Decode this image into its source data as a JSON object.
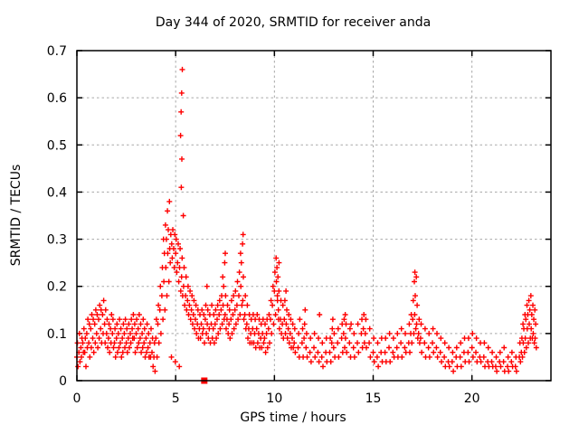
{
  "colors": {
    "marker": "#ff0000",
    "grid": "#a8a8a8",
    "axis": "#000000",
    "background": "#ffffff"
  },
  "chart_data": {
    "type": "scatter",
    "title": "Day 344 of 2020, SRMTID for receiver anda",
    "xlabel": "GPS time / hours",
    "ylabel": "SRMTID / TECUs",
    "xlim": [
      0,
      24
    ],
    "ylim": [
      0,
      0.7
    ],
    "grid": {
      "on": true,
      "style": "dashed"
    },
    "legend": "none",
    "xticks": {
      "values": [
        0,
        5,
        10,
        15,
        20
      ],
      "labels": [
        "0",
        "5",
        "10",
        "15",
        "20"
      ]
    },
    "yticks": {
      "values": [
        0,
        0.1,
        0.2,
        0.3,
        0.4,
        0.5,
        0.6,
        0.7
      ],
      "labels": [
        "0",
        "0.1",
        "0.2",
        "0.3",
        "0.4",
        "0.5",
        "0.6",
        "0.7"
      ]
    },
    "series": [
      {
        "name": "srmtid-points",
        "marker": "plus",
        "color": "#ff0000",
        "samples_format": "[hour, value, value, ...]",
        "samples": [
          [
            0.0,
            0.05,
            0.08,
            0.03
          ],
          [
            0.1,
            0.06,
            0.1,
            0.04
          ],
          [
            0.2,
            0.07,
            0.05,
            0.09
          ],
          [
            0.3,
            0.08,
            0.06,
            0.11
          ],
          [
            0.4,
            0.06,
            0.09,
            0.03
          ],
          [
            0.5,
            0.1,
            0.07,
            0.13
          ],
          [
            0.6,
            0.08,
            0.12,
            0.05
          ],
          [
            0.7,
            0.11,
            0.07,
            0.14
          ],
          [
            0.8,
            0.09,
            0.13,
            0.06
          ],
          [
            0.9,
            0.12,
            0.08,
            0.15
          ],
          [
            1.0,
            0.1,
            0.14,
            0.07
          ],
          [
            1.1,
            0.13,
            0.09,
            0.16
          ],
          [
            1.2,
            0.11,
            0.15,
            0.08
          ],
          [
            1.3,
            0.14,
            0.1,
            0.17
          ],
          [
            1.4,
            0.12,
            0.08,
            0.15
          ],
          [
            1.5,
            0.1,
            0.13,
            0.07
          ],
          [
            1.6,
            0.09,
            0.12,
            0.06
          ],
          [
            1.7,
            0.11,
            0.08,
            0.14
          ],
          [
            1.8,
            0.1,
            0.13,
            0.07
          ],
          [
            1.9,
            0.08,
            0.11,
            0.05
          ],
          [
            2.0,
            0.09,
            0.12,
            0.06
          ],
          [
            2.1,
            0.1,
            0.07,
            0.13
          ],
          [
            2.2,
            0.08,
            0.11,
            0.05
          ],
          [
            2.3,
            0.09,
            0.06,
            0.12
          ],
          [
            2.4,
            0.1,
            0.07,
            0.13
          ],
          [
            2.5,
            0.08,
            0.11,
            0.06
          ],
          [
            2.6,
            0.09,
            0.12,
            0.07
          ],
          [
            2.7,
            0.1,
            0.08,
            0.13
          ],
          [
            2.8,
            0.11,
            0.09,
            0.14
          ],
          [
            2.9,
            0.09,
            0.12,
            0.06
          ],
          [
            3.0,
            0.1,
            0.13,
            0.07
          ],
          [
            3.1,
            0.11,
            0.08,
            0.14
          ],
          [
            3.2,
            0.09,
            0.12,
            0.06
          ],
          [
            3.3,
            0.1,
            0.07,
            0.13
          ],
          [
            3.4,
            0.08,
            0.11,
            0.05
          ],
          [
            3.5,
            0.09,
            0.06,
            0.12
          ],
          [
            3.6,
            0.07,
            0.1,
            0.05
          ],
          [
            3.7,
            0.08,
            0.05,
            0.11
          ],
          [
            3.8,
            0.06,
            0.09,
            0.03
          ],
          [
            3.9,
            0.05,
            0.08,
            0.02
          ],
          [
            4.0,
            0.09,
            0.13,
            0.05
          ],
          [
            4.1,
            0.12,
            0.16,
            0.08
          ],
          [
            4.2,
            0.15,
            0.2,
            0.1
          ],
          [
            4.3,
            0.18,
            0.24,
            0.13,
            0.3
          ],
          [
            4.4,
            0.21,
            0.27,
            0.15,
            0.33
          ],
          [
            4.5,
            0.24,
            0.3,
            0.18,
            0.36
          ],
          [
            4.6,
            0.27,
            0.32,
            0.21,
            0.38
          ],
          [
            4.7,
            0.28,
            0.25,
            0.31,
            0.05
          ],
          [
            4.8,
            0.29,
            0.26,
            0.32
          ],
          [
            4.9,
            0.28,
            0.24,
            0.31,
            0.04
          ],
          [
            5.0,
            0.27,
            0.3,
            0.23
          ],
          [
            5.1,
            0.25,
            0.29,
            0.21,
            0.03
          ],
          [
            5.2,
            0.24,
            0.28,
            0.19,
            0.41,
            0.47
          ],
          [
            5.25,
            0.52,
            0.57,
            0.61,
            0.66
          ],
          [
            5.3,
            0.22,
            0.26,
            0.18,
            0.35
          ],
          [
            5.4,
            0.2,
            0.24,
            0.16
          ],
          [
            5.5,
            0.18,
            0.22,
            0.15
          ],
          [
            5.6,
            0.17,
            0.2,
            0.14
          ],
          [
            5.7,
            0.16,
            0.19,
            0.13
          ],
          [
            5.8,
            0.15,
            0.18,
            0.12
          ],
          [
            5.9,
            0.14,
            0.17,
            0.11
          ],
          [
            6.0,
            0.13,
            0.16,
            0.1
          ],
          [
            6.1,
            0.12,
            0.15,
            0.09
          ],
          [
            6.2,
            0.11,
            0.14,
            0.09
          ],
          [
            6.3,
            0.12,
            0.15,
            0.1
          ],
          [
            6.4,
            0.11,
            0.14,
            0.08
          ],
          [
            6.5,
            0.13,
            0.16,
            0.1,
            0.2
          ],
          [
            6.6,
            0.12,
            0.15,
            0.09
          ],
          [
            6.7,
            0.11,
            0.14,
            0.08
          ],
          [
            6.8,
            0.12,
            0.16,
            0.09
          ],
          [
            6.9,
            0.11,
            0.14,
            0.08
          ],
          [
            7.0,
            0.12,
            0.15,
            0.09
          ],
          [
            7.1,
            0.13,
            0.16,
            0.1
          ],
          [
            7.2,
            0.14,
            0.17,
            0.11
          ],
          [
            7.3,
            0.15,
            0.18,
            0.12,
            0.22
          ],
          [
            7.4,
            0.16,
            0.2,
            0.13,
            0.25,
            0.27
          ],
          [
            7.5,
            0.14,
            0.18,
            0.11
          ],
          [
            7.6,
            0.13,
            0.16,
            0.1
          ],
          [
            7.7,
            0.12,
            0.15,
            0.09
          ],
          [
            7.8,
            0.13,
            0.17,
            0.1
          ],
          [
            7.9,
            0.14,
            0.18,
            0.11
          ],
          [
            8.0,
            0.15,
            0.19,
            0.12
          ],
          [
            8.1,
            0.16,
            0.21,
            0.13
          ],
          [
            8.2,
            0.18,
            0.23,
            0.14,
            0.27
          ],
          [
            8.3,
            0.2,
            0.25,
            0.16,
            0.29,
            0.31
          ],
          [
            8.4,
            0.17,
            0.22,
            0.13
          ],
          [
            8.5,
            0.14,
            0.18,
            0.11
          ],
          [
            8.6,
            0.12,
            0.16,
            0.09
          ],
          [
            8.7,
            0.11,
            0.14,
            0.08
          ],
          [
            8.8,
            0.1,
            0.13,
            0.08
          ],
          [
            8.9,
            0.11,
            0.14,
            0.08
          ],
          [
            9.0,
            0.1,
            0.13,
            0.07
          ],
          [
            9.1,
            0.11,
            0.14,
            0.08
          ],
          [
            9.2,
            0.1,
            0.13,
            0.07
          ],
          [
            9.3,
            0.09,
            0.12,
            0.07
          ],
          [
            9.4,
            0.1,
            0.13,
            0.08
          ],
          [
            9.5,
            0.09,
            0.12,
            0.06
          ],
          [
            9.6,
            0.1,
            0.13,
            0.07
          ],
          [
            9.7,
            0.11,
            0.14,
            0.08
          ],
          [
            9.8,
            0.13,
            0.17,
            0.1
          ],
          [
            9.9,
            0.16,
            0.2,
            0.12
          ],
          [
            10.0,
            0.19,
            0.23,
            0.14,
            0.26
          ],
          [
            10.1,
            0.21,
            0.24,
            0.17
          ],
          [
            10.15,
            0.18,
            0.22,
            0.13,
            0.25
          ],
          [
            10.2,
            0.15,
            0.19,
            0.11
          ],
          [
            10.3,
            0.13,
            0.17,
            0.1
          ],
          [
            10.4,
            0.12,
            0.16,
            0.09
          ],
          [
            10.5,
            0.13,
            0.17,
            0.1,
            0.19
          ],
          [
            10.6,
            0.12,
            0.15,
            0.09
          ],
          [
            10.7,
            0.11,
            0.14,
            0.08
          ],
          [
            10.8,
            0.1,
            0.13,
            0.07
          ],
          [
            10.9,
            0.09,
            0.12,
            0.07
          ],
          [
            11.0,
            0.08,
            0.11,
            0.06
          ],
          [
            11.2,
            0.07,
            0.1,
            0.05,
            0.13
          ],
          [
            11.4,
            0.08,
            0.11,
            0.05
          ],
          [
            11.5,
            0.09,
            0.12,
            0.15
          ],
          [
            11.6,
            0.07,
            0.1,
            0.05
          ],
          [
            11.8,
            0.06,
            0.09,
            0.04
          ],
          [
            12.0,
            0.07,
            0.1,
            0.05
          ],
          [
            12.2,
            0.06,
            0.09,
            0.04,
            0.14
          ],
          [
            12.4,
            0.05,
            0.08,
            0.03
          ],
          [
            12.6,
            0.06,
            0.09,
            0.04
          ],
          [
            12.8,
            0.06,
            0.09,
            0.04
          ],
          [
            12.9,
            0.08,
            0.11,
            0.13
          ],
          [
            13.0,
            0.07,
            0.1,
            0.05
          ],
          [
            13.2,
            0.08,
            0.11,
            0.05
          ],
          [
            13.4,
            0.09,
            0.12,
            0.06
          ],
          [
            13.5,
            0.1,
            0.13,
            0.07,
            0.14
          ],
          [
            13.6,
            0.09,
            0.12,
            0.06
          ],
          [
            13.8,
            0.08,
            0.11,
            0.05,
            0.12
          ],
          [
            14.0,
            0.07,
            0.1,
            0.05
          ],
          [
            14.2,
            0.08,
            0.12,
            0.06
          ],
          [
            14.4,
            0.1,
            0.13,
            0.07
          ],
          [
            14.5,
            0.11,
            0.14,
            0.08
          ],
          [
            14.6,
            0.1,
            0.13,
            0.07
          ],
          [
            14.8,
            0.08,
            0.11,
            0.05
          ],
          [
            15.0,
            0.06,
            0.09,
            0.04
          ],
          [
            15.2,
            0.05,
            0.08,
            0.03
          ],
          [
            15.4,
            0.06,
            0.09,
            0.04
          ],
          [
            15.6,
            0.06,
            0.09,
            0.04
          ],
          [
            15.8,
            0.07,
            0.1,
            0.04
          ],
          [
            16.0,
            0.06,
            0.09,
            0.05
          ],
          [
            16.2,
            0.07,
            0.1,
            0.05
          ],
          [
            16.4,
            0.08,
            0.11,
            0.05
          ],
          [
            16.6,
            0.07,
            0.1,
            0.06
          ],
          [
            16.8,
            0.08,
            0.12,
            0.06
          ],
          [
            16.9,
            0.1,
            0.14,
            0.08
          ],
          [
            17.0,
            0.13,
            0.17,
            0.1,
            0.21,
            0.23
          ],
          [
            17.1,
            0.14,
            0.18,
            0.11,
            0.22
          ],
          [
            17.2,
            0.12,
            0.16,
            0.09
          ],
          [
            17.3,
            0.1,
            0.13,
            0.08
          ],
          [
            17.4,
            0.09,
            0.12,
            0.06
          ],
          [
            17.6,
            0.08,
            0.11,
            0.05
          ],
          [
            17.8,
            0.07,
            0.1,
            0.05
          ],
          [
            18.0,
            0.08,
            0.11,
            0.06
          ],
          [
            18.2,
            0.07,
            0.1,
            0.05
          ],
          [
            18.4,
            0.06,
            0.09,
            0.04
          ],
          [
            18.6,
            0.05,
            0.08,
            0.03
          ],
          [
            18.8,
            0.04,
            0.07,
            0.03
          ],
          [
            19.0,
            0.04,
            0.06,
            0.02
          ],
          [
            19.2,
            0.05,
            0.07,
            0.03
          ],
          [
            19.4,
            0.05,
            0.08,
            0.03
          ],
          [
            19.6,
            0.06,
            0.09,
            0.04
          ],
          [
            19.8,
            0.06,
            0.09,
            0.04
          ],
          [
            20.0,
            0.07,
            0.1,
            0.05
          ],
          [
            20.2,
            0.06,
            0.09,
            0.04
          ],
          [
            20.4,
            0.05,
            0.08,
            0.04
          ],
          [
            20.6,
            0.05,
            0.08,
            0.03
          ],
          [
            20.8,
            0.04,
            0.07,
            0.03
          ],
          [
            21.0,
            0.04,
            0.06,
            0.03
          ],
          [
            21.2,
            0.03,
            0.05,
            0.02
          ],
          [
            21.4,
            0.04,
            0.06,
            0.03
          ],
          [
            21.6,
            0.04,
            0.07,
            0.02
          ],
          [
            21.8,
            0.03,
            0.05,
            0.02
          ],
          [
            22.0,
            0.04,
            0.06,
            0.03
          ],
          [
            22.2,
            0.03,
            0.05,
            0.02
          ],
          [
            22.4,
            0.05,
            0.08,
            0.04
          ],
          [
            22.5,
            0.06,
            0.09,
            0.05,
            0.12
          ],
          [
            22.6,
            0.08,
            0.11,
            0.06,
            0.14
          ],
          [
            22.7,
            0.09,
            0.13,
            0.07,
            0.16
          ],
          [
            22.8,
            0.11,
            0.14,
            0.08,
            0.17
          ],
          [
            22.9,
            0.12,
            0.15,
            0.09,
            0.18
          ],
          [
            23.0,
            0.11,
            0.14,
            0.09,
            0.16
          ],
          [
            23.1,
            0.1,
            0.13,
            0.08,
            0.15
          ],
          [
            23.2,
            0.09,
            0.12,
            0.07
          ]
        ]
      },
      {
        "name": "zero-flag-marker",
        "marker": "filled-square",
        "color": "#ff0000",
        "points": [
          [
            6.45,
            0.0
          ]
        ]
      }
    ]
  }
}
